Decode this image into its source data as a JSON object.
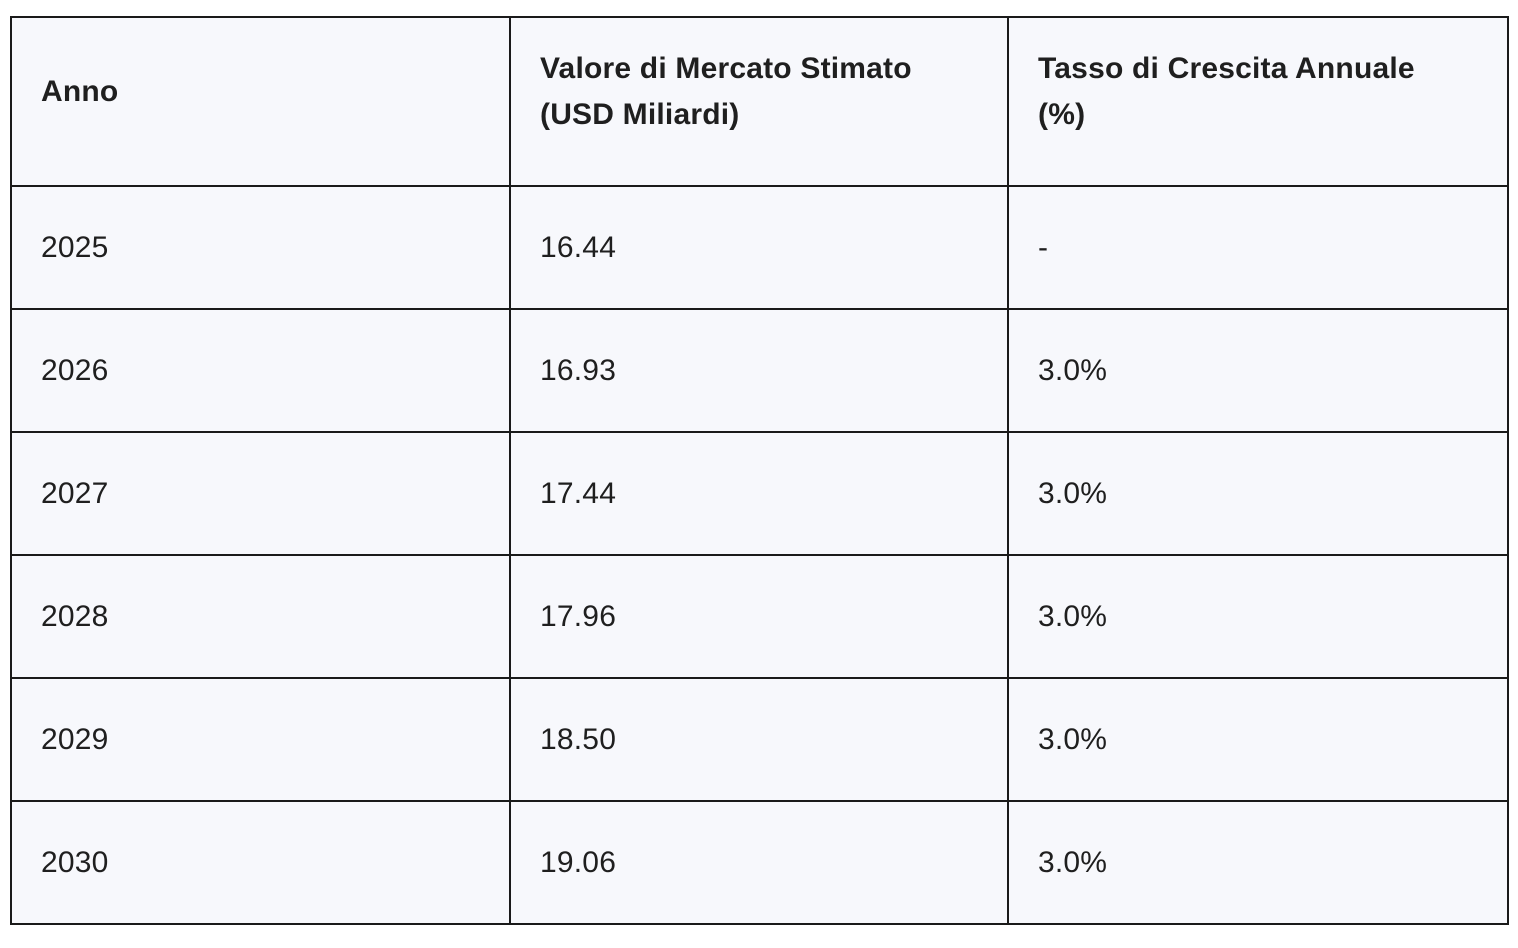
{
  "table": {
    "headers": [
      "Anno",
      "Valore di Mercato Stimato (USD Miliardi)",
      "Tasso di Crescita Annuale (%)"
    ],
    "rows": [
      [
        "2025",
        "16.44",
        "-"
      ],
      [
        "2026",
        "16.93",
        "3.0%"
      ],
      [
        "2027",
        "17.44",
        "3.0%"
      ],
      [
        "2028",
        "17.96",
        "3.0%"
      ],
      [
        "2029",
        "18.50",
        "3.0%"
      ],
      [
        "2030",
        "19.06",
        "3.0%"
      ]
    ]
  },
  "colors": {
    "cell_background": "#f7f8fc",
    "border": "#1a1a1a",
    "text": "#1f1f1f"
  }
}
